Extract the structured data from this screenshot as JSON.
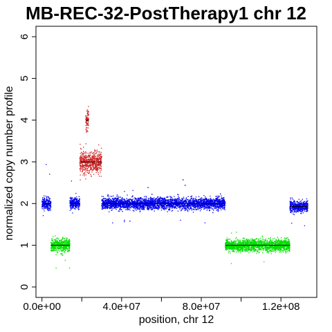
{
  "chart_data": {
    "type": "scatter",
    "title": "MB-REC-32-PostTherapy1 chr 12",
    "xlabel": "position, chr 12",
    "ylabel": "normalized copy number profile",
    "xlim": [
      -3000000,
      138000000
    ],
    "ylim": [
      -0.25,
      6.25
    ],
    "x_ticks": [
      0,
      40000000,
      80000000,
      120000000
    ],
    "x_tick_labels": [
      "0.0e+00",
      "4.0e+07",
      "8.0e+07",
      "1.2e+08"
    ],
    "y_ticks": [
      0,
      1,
      2,
      3,
      4,
      5,
      6
    ],
    "y_tick_labels": [
      "0",
      "1",
      "2",
      "3",
      "4",
      "5",
      "6"
    ],
    "grid": false,
    "legend": "none",
    "colors": {
      "gain": "#cc2222",
      "neutral": "#0000ee",
      "loss": "#00dd00",
      "segment_line": "#000000"
    },
    "segments": [
      {
        "start": 0,
        "end": 4500000,
        "value": 2.0,
        "status": "neutral"
      },
      {
        "start": 4500000,
        "end": 14000000,
        "value": 1.0,
        "status": "loss"
      },
      {
        "start": 14000000,
        "end": 19000000,
        "value": 2.0,
        "status": "neutral"
      },
      {
        "start": 19000000,
        "end": 26500000,
        "value": 3.0,
        "status": "gain"
      },
      {
        "start": 22000000,
        "end": 23500000,
        "value": 4.0,
        "status": "gain"
      },
      {
        "start": 26500000,
        "end": 30000000,
        "value": 3.0,
        "status": "gain"
      },
      {
        "start": 30000000,
        "end": 33000000,
        "value": 2.0,
        "status": "neutral"
      },
      {
        "start": 33000000,
        "end": 36000000,
        "value": 2.0,
        "status": "neutral"
      },
      {
        "start": 36000000,
        "end": 92000000,
        "value": 2.0,
        "status": "neutral"
      },
      {
        "start": 92000000,
        "end": 124500000,
        "value": 1.0,
        "status": "loss"
      },
      {
        "start": 124500000,
        "end": 133500000,
        "value": 1.93,
        "status": "neutral"
      }
    ]
  }
}
